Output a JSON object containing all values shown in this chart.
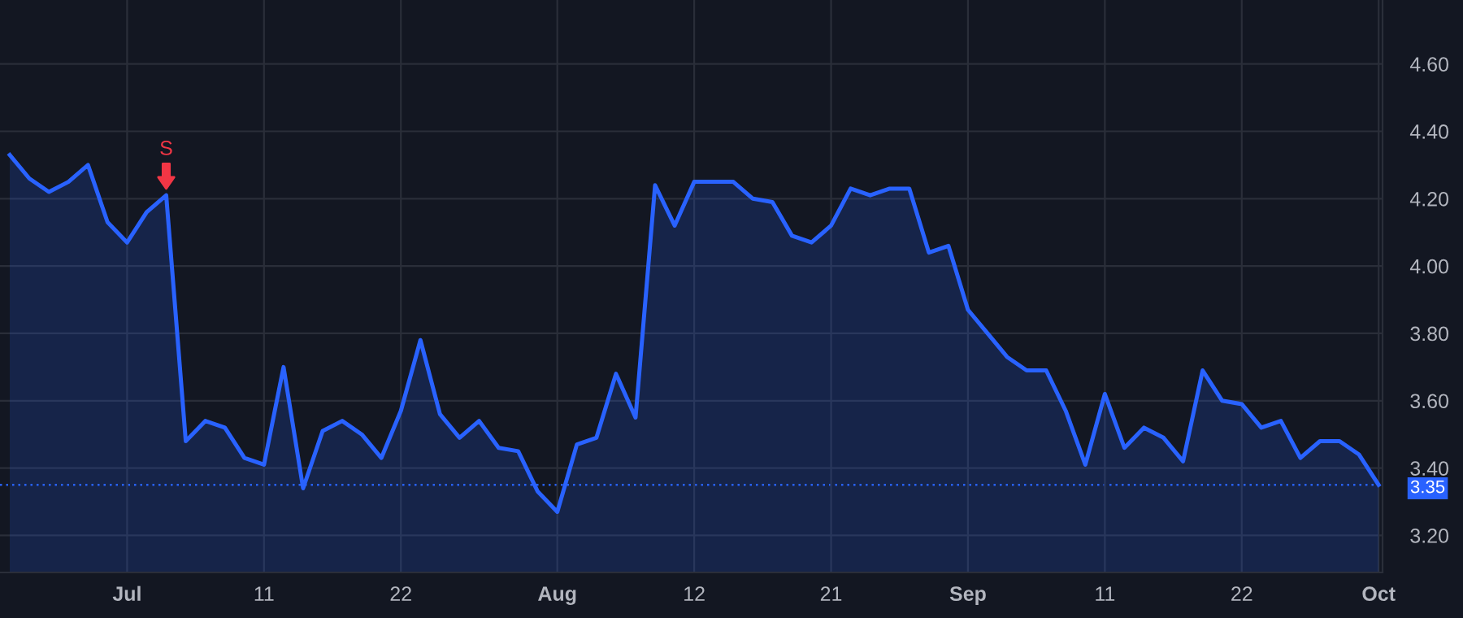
{
  "chart_data": {
    "type": "area",
    "categories": [
      null,
      null,
      null,
      null,
      null,
      null,
      "Jul",
      null,
      null,
      null,
      null,
      null,
      null,
      "11",
      null,
      null,
      null,
      null,
      null,
      null,
      "22",
      null,
      null,
      null,
      null,
      null,
      null,
      null,
      "Aug",
      null,
      null,
      null,
      null,
      null,
      null,
      "12",
      null,
      null,
      null,
      null,
      null,
      null,
      "21",
      null,
      null,
      null,
      null,
      null,
      null,
      "Sep",
      null,
      null,
      null,
      null,
      null,
      null,
      "11",
      null,
      null,
      null,
      null,
      null,
      null,
      "22",
      null,
      null,
      null,
      null,
      null,
      null,
      "Oct"
    ],
    "series": [
      {
        "color": "#2962ff",
        "values": [
          4.33,
          4.26,
          4.22,
          4.25,
          4.3,
          4.13,
          4.07,
          4.16,
          4.21,
          3.48,
          3.54,
          3.52,
          3.43,
          3.41,
          3.7,
          3.34,
          3.51,
          3.54,
          3.5,
          3.43,
          3.57,
          3.78,
          3.56,
          3.49,
          3.54,
          3.46,
          3.45,
          3.33,
          3.27,
          3.47,
          3.49,
          3.68,
          3.55,
          4.24,
          4.12,
          4.25,
          4.25,
          4.25,
          4.2,
          4.19,
          4.09,
          4.07,
          4.12,
          4.23,
          4.21,
          4.23,
          4.23,
          4.04,
          4.06,
          3.87,
          3.8,
          3.73,
          3.69,
          3.69,
          3.57,
          3.41,
          3.62,
          3.46,
          3.52,
          3.49,
          3.42,
          3.69,
          3.6,
          3.59,
          3.52,
          3.54,
          3.43,
          3.48,
          3.48,
          3.44,
          3.35
        ]
      }
    ],
    "ylim": [
      3.09,
      4.79
    ],
    "yticks": [
      {
        "value": 3.2,
        "label": "3.20"
      },
      {
        "value": 3.4,
        "label": "3.40"
      },
      {
        "value": 3.6,
        "label": "3.60"
      },
      {
        "value": 3.8,
        "label": "3.80"
      },
      {
        "value": 4.0,
        "label": "4.00"
      },
      {
        "value": 4.2,
        "label": "4.20"
      },
      {
        "value": 4.4,
        "label": "4.40"
      },
      {
        "value": 4.6,
        "label": "4.60"
      }
    ],
    "grid": true,
    "ref_lines": [
      {
        "axis": "y",
        "value": 3.35,
        "label": "3.35",
        "color": "#2962ff",
        "line_style": "dotted"
      }
    ],
    "annotations": [
      {
        "text": "S",
        "y": 4.21
      }
    ]
  }
}
